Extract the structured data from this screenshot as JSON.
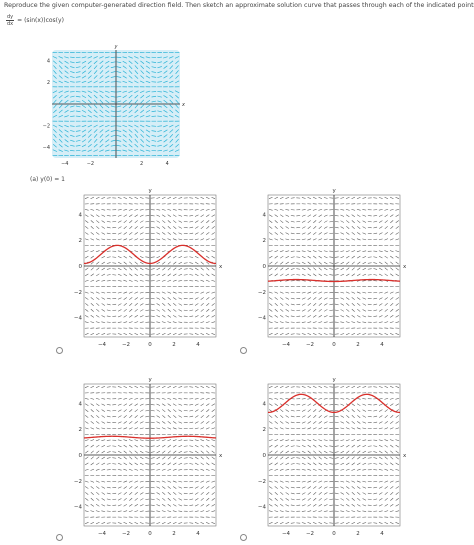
{
  "question": {
    "prompt": "Reproduce the given computer-generated direction field. Then sketch an approximate solution curve that passes through each of the indicated points.",
    "equation_lhs_num": "dy",
    "equation_lhs_den": "dx",
    "equation_rhs": "= (sin(x))cos(y)"
  },
  "part_a": {
    "label": "(a)",
    "condition": "y(0) = 1"
  },
  "reference_field": {
    "x_label": "x",
    "y_label": "y",
    "x_ticks": [
      -4,
      -2,
      2,
      4
    ],
    "y_ticks": [
      4,
      2,
      -2,
      -4
    ],
    "xlim": [
      -5,
      5
    ],
    "ylim": [
      -5,
      5
    ],
    "arrow_color": "#2ab3d6",
    "background_color": "#d6eef7"
  },
  "options": [
    {
      "id": "A",
      "curve_type": "oscillating",
      "center_y": 0.9,
      "amplitude": 0.7
    },
    {
      "id": "B",
      "curve_type": "near_flat",
      "center_y": -1.2,
      "amplitude": 0.15
    },
    {
      "id": "C",
      "curve_type": "near_flat",
      "center_y": 1.3,
      "amplitude": 0.15
    },
    {
      "id": "D",
      "curve_type": "oscillating",
      "center_y": 4.0,
      "amplitude": 0.7
    }
  ],
  "option_axes": {
    "x_label": "x",
    "y_label": "y",
    "x_ticks": [
      -4,
      -2,
      0,
      2,
      4
    ],
    "y_ticks": [
      4,
      2,
      0,
      -2,
      -4
    ],
    "xlim": [
      -5.5,
      5.5
    ],
    "ylim": [
      -5.5,
      5.5
    ],
    "curve_color": "#d9302c",
    "arrow_color": "#555555"
  }
}
